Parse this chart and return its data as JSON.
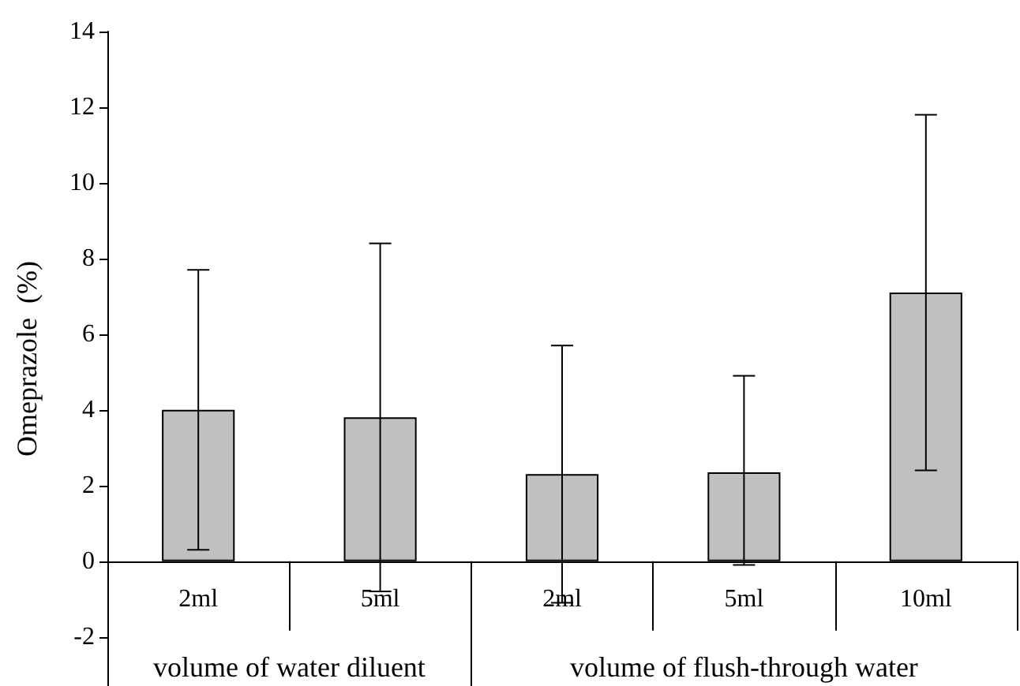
{
  "chart_data": {
    "type": "bar",
    "ylabel": "Omeprazole  (%)",
    "categories": [
      "2ml",
      "5ml",
      "2ml",
      "5ml",
      "10ml"
    ],
    "values": [
      4.0,
      3.8,
      2.3,
      2.35,
      7.1
    ],
    "errors": [
      [
        0.3,
        7.7
      ],
      [
        -0.8,
        8.4
      ],
      [
        -1.1,
        5.7
      ],
      [
        -0.1,
        4.9
      ],
      [
        2.4,
        11.8
      ]
    ],
    "color": "#c0c0c0",
    "ylim": [
      -3.3,
      14
    ],
    "yticks": [
      -2,
      0,
      2,
      4,
      6,
      8,
      10,
      12,
      14
    ],
    "annotations": [
      "volume of water diluent",
      "volume of flush-through water"
    ]
  }
}
